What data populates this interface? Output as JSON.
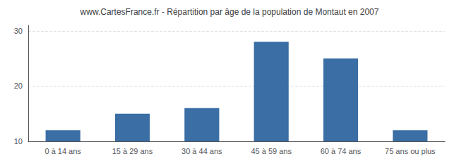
{
  "chart_data": {
    "type": "bar",
    "title": "www.CartesFrance.fr - Répartition par âge de la population de Montaut en 2007",
    "categories": [
      "0 à 14 ans",
      "15 à 29 ans",
      "30 à 44 ans",
      "45 à 59 ans",
      "60 à 74 ans",
      "75 ans ou plus"
    ],
    "values": [
      12,
      15,
      16,
      28,
      25,
      12
    ],
    "color": "#3a6ea5",
    "ylim": [
      10,
      31
    ],
    "yticks": [
      10,
      20,
      30
    ],
    "grid": true
  }
}
